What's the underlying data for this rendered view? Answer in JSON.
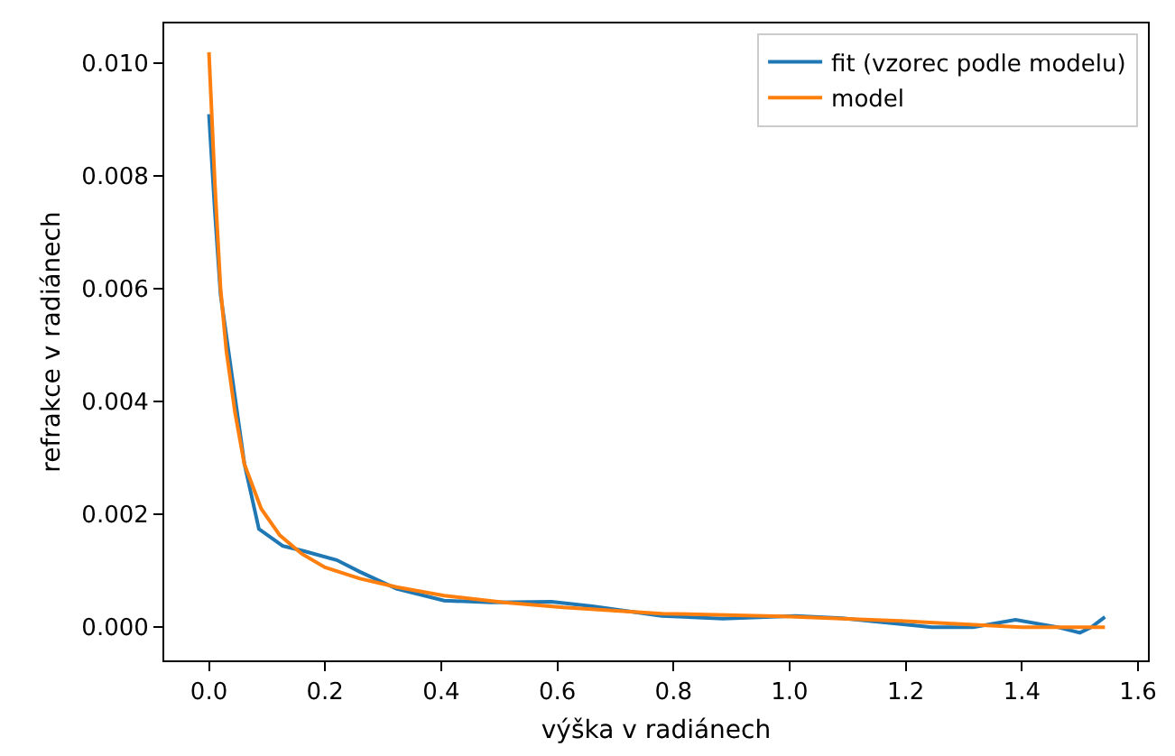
{
  "chart_data": {
    "type": "line",
    "xlabel": "výška v radiánech",
    "ylabel": "refrakce v radiánech",
    "xlim": [
      -0.077,
      1.617
    ],
    "ylim": [
      -0.00059,
      0.01071
    ],
    "xticks": [
      {
        "value": 0,
        "label": "0.0"
      },
      0.2,
      0.4,
      0.6,
      0.8,
      {
        "value": 1,
        "label": "1.0"
      },
      1.2,
      1.4,
      1.6
    ],
    "yticks": [
      {
        "value": 0,
        "label": "0.000"
      },
      {
        "value": 0.002,
        "label": "0.002"
      },
      {
        "value": 0.004,
        "label": "0.004"
      },
      {
        "value": 0.006,
        "label": "0.006"
      },
      {
        "value": 0.008,
        "label": "0.008"
      },
      {
        "value": 0.01,
        "label": "0.010"
      }
    ],
    "legend": "top right",
    "marker": "none",
    "line_style": "solid",
    "series": [
      {
        "name": "fit (vzorec podle modelu)",
        "color": "#1f77b4",
        "x": [
          0,
          0.01,
          0.02,
          0.035,
          0.061,
          0.086,
          0.127,
          0.163,
          0.22,
          0.26,
          0.323,
          0.405,
          0.487,
          0.59,
          0.66,
          0.78,
          0.885,
          1.01,
          1.09,
          1.245,
          1.316,
          1.389,
          1.461,
          1.5,
          1.52,
          1.543
        ],
        "values": [
          0.0091,
          0.0074,
          0.0059,
          0.0048,
          0.0029,
          0.00174,
          0.00144,
          0.00135,
          0.00119,
          0.00098,
          0.00068,
          0.00047,
          0.00044,
          0.00045,
          0.00037,
          0.0002,
          0.00015,
          0.0002,
          0.00016,
          0.0,
          0.0,
          0.00013,
          0.0,
          -0.0001,
          0.0,
          0.00018
        ]
      },
      {
        "name": "model",
        "color": "#ff7f0e",
        "x": [
          0,
          0.01,
          0.02,
          0.03,
          0.045,
          0.061,
          0.09,
          0.122,
          0.16,
          0.2,
          0.26,
          0.323,
          0.405,
          0.508,
          0.61,
          0.78,
          0.99,
          1.19,
          1.4,
          1.543
        ],
        "values": [
          0.0102,
          0.0079,
          0.006,
          0.0049,
          0.0038,
          0.00289,
          0.0021,
          0.00163,
          0.0013,
          0.00106,
          0.00086,
          0.00071,
          0.00056,
          0.00044,
          0.00035,
          0.00024,
          0.00019,
          0.00011,
          0.0,
          0.0
        ]
      }
    ]
  }
}
